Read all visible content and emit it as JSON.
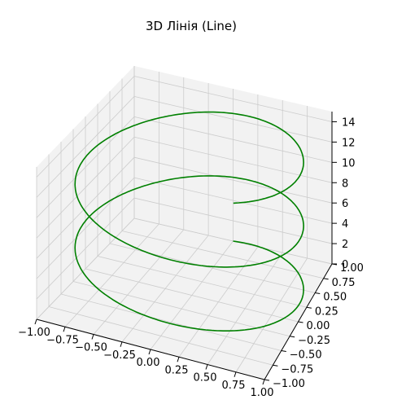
{
  "chart_data": {
    "type": "line",
    "projection": "3d",
    "title": "3D Лінія (Line)",
    "corner_label": "",
    "x_ticks": [
      "−1.00",
      "−0.75",
      "−0.50",
      "−0.25",
      "0.00",
      "0.25",
      "0.50",
      "0.75",
      "1.00"
    ],
    "y_ticks": [
      "−1.00",
      "−0.75",
      "−0.50",
      "−0.25",
      "0.00",
      "0.25",
      "0.50",
      "0.75",
      "1.00"
    ],
    "z_ticks": [
      "0",
      "2",
      "4",
      "6",
      "8",
      "10",
      "12",
      "14"
    ],
    "x_values": [
      -1,
      -0.75,
      -0.5,
      -0.25,
      0,
      0.25,
      0.5,
      0.75,
      1
    ],
    "y_values": [
      -1,
      -0.75,
      -0.5,
      -0.25,
      0,
      0.25,
      0.5,
      0.75,
      1
    ],
    "z_values": [
      0,
      2,
      4,
      6,
      8,
      10,
      12,
      14
    ],
    "xlim": [
      -1.0,
      1.0
    ],
    "ylim": [
      -1.0,
      1.0
    ],
    "zlim": [
      0,
      15
    ],
    "grid": true,
    "series": [
      {
        "equation": "x = sin(t), y = cos(t), z = t",
        "t_range": [
          0,
          15
        ],
        "color": "#008000"
      }
    ],
    "pane_color": "#f2f2f2",
    "grid_color": "#cccccc"
  }
}
